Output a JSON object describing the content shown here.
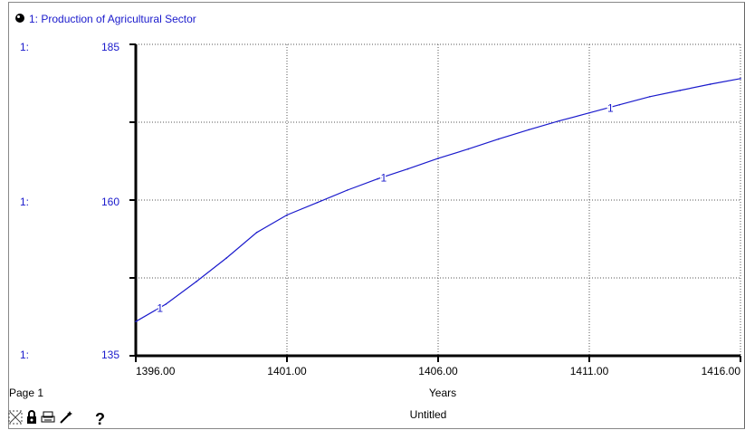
{
  "header": {
    "series_title": "1: Production of Agricultural Sector"
  },
  "y_axis_unit_labels": [
    "1:",
    "1:",
    "1:"
  ],
  "chart_data": {
    "type": "line",
    "title": "1: Production of Agricultural Sector",
    "xlabel": "Years",
    "ylabel": "",
    "xlim": [
      1396,
      1416
    ],
    "ylim": [
      135,
      185
    ],
    "x_ticks": [
      "1396.00",
      "1401.00",
      "1406.00",
      "1411.00",
      "1416.00"
    ],
    "y_tick_labels": [
      "185",
      "160",
      "135"
    ],
    "y_tick_values": [
      185,
      160,
      135
    ],
    "grid": "dotted",
    "series": [
      {
        "name": "1",
        "color": "#1a1acc",
        "x": [
          1396,
          1397,
          1398,
          1399,
          1400,
          1401,
          1402,
          1403,
          1404,
          1405,
          1406,
          1407,
          1408,
          1409,
          1410,
          1411,
          1412,
          1413,
          1414,
          1415,
          1416
        ],
        "y": [
          140.5,
          143.3,
          146.9,
          150.7,
          154.8,
          157.6,
          159.6,
          161.6,
          163.4,
          165.0,
          166.7,
          168.2,
          169.8,
          171.3,
          172.7,
          174.0,
          175.3,
          176.6,
          177.6,
          178.6,
          179.5
        ],
        "marker_positions": [
          1396.8,
          1404.2,
          1411.7
        ]
      }
    ]
  },
  "footer": {
    "page_label": "Page 1",
    "model_name": "Untitled"
  },
  "toolbar": {
    "icons": [
      "graph-tool-icon",
      "lock-icon",
      "print-icon",
      "magic-wand-icon",
      "help-icon"
    ],
    "help_label": "?"
  }
}
